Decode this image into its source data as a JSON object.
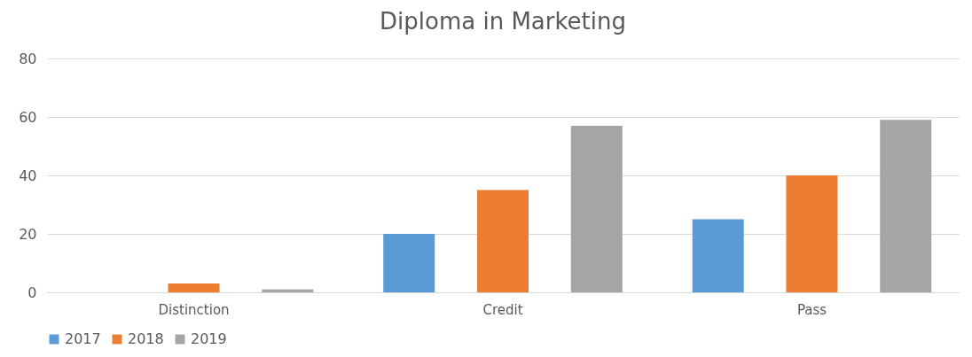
{
  "chart_data": {
    "type": "bar",
    "title": "Diploma in Marketing",
    "categories": [
      "Distinction",
      "Credit",
      "Pass"
    ],
    "series": [
      {
        "name": "2017",
        "color": "#5b9bd5",
        "values": [
          0,
          20,
          25
        ]
      },
      {
        "name": "2018",
        "color": "#ed7d31",
        "values": [
          3,
          35,
          40
        ]
      },
      {
        "name": "2019",
        "color": "#a5a5a5",
        "values": [
          1,
          57,
          59
        ]
      }
    ],
    "ylim": [
      0,
      80
    ],
    "yticks": [
      0,
      20,
      40,
      60,
      80
    ],
    "grid": "y",
    "legend": "bottom"
  }
}
